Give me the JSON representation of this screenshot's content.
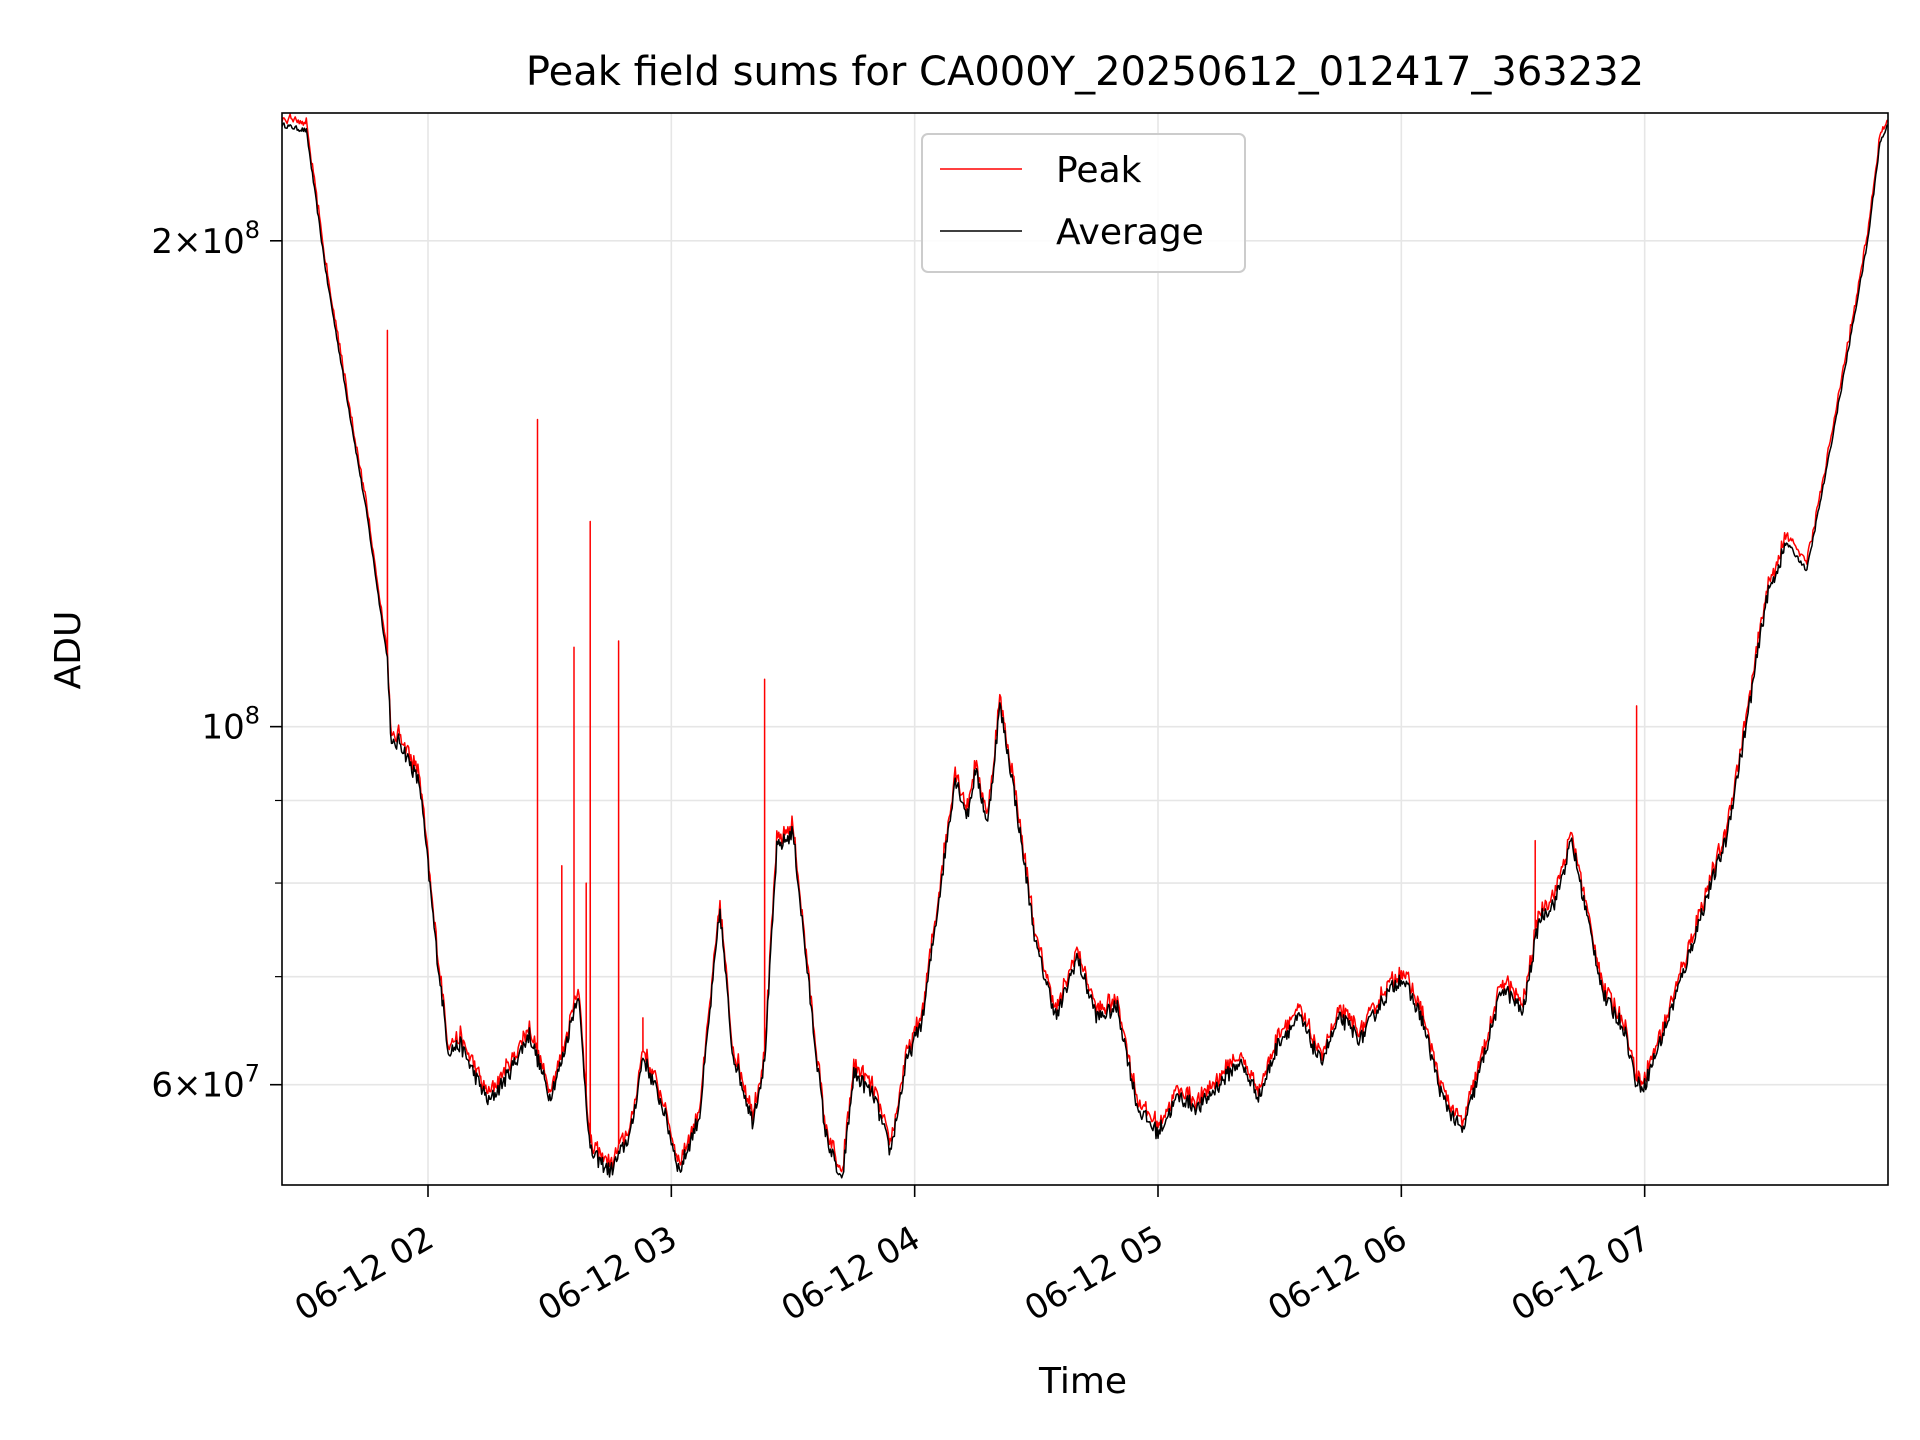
{
  "chart_data": {
    "type": "line",
    "title": "Peak field sums for CA000Y_20250612_012417_363232",
    "xlabel": "Time",
    "ylabel": "ADU",
    "yscale": "log",
    "ylim": [
      52000000,
      240000000
    ],
    "xlim": [
      "06-12 01:24",
      "06-12 08:00"
    ],
    "x_ticks": [
      "06-12 02",
      "06-12 03",
      "06-12 04",
      "06-12 05",
      "06-12 06",
      "06-12 07"
    ],
    "y_ticks": [
      {
        "value": 60000000,
        "mantissa": "6",
        "exponent": "7"
      },
      {
        "value": 100000000,
        "mantissa": "",
        "exponent": "8"
      },
      {
        "value": 200000000,
        "mantissa": "2",
        "exponent": "8"
      }
    ],
    "y_minor_grid": [
      70000000,
      80000000,
      90000000
    ],
    "grid": true,
    "legend": {
      "position": "top-center",
      "entries": [
        "Peak",
        "Average"
      ]
    },
    "series": [
      {
        "name": "Average",
        "color": "#000000",
        "x": [
          "06-12 01:24",
          "06-12 01:30",
          "06-12 01:35",
          "06-12 01:40",
          "06-12 01:45",
          "06-12 01:50",
          "06-12 01:51",
          "06-12 01:53",
          "06-12 01:58",
          "06-12 02:02",
          "06-12 02:05",
          "06-12 02:08",
          "06-12 02:12",
          "06-12 02:15",
          "06-12 02:20",
          "06-12 02:25",
          "06-12 02:30",
          "06-12 02:33",
          "06-12 02:37",
          "06-12 02:40",
          "06-12 02:45",
          "06-12 02:50",
          "06-12 02:53",
          "06-12 02:58",
          "06-12 03:02",
          "06-12 03:07",
          "06-12 03:12",
          "06-12 03:15",
          "06-12 03:20",
          "06-12 03:23",
          "06-12 03:26",
          "06-12 03:30",
          "06-12 03:35",
          "06-12 03:38",
          "06-12 03:42",
          "06-12 03:45",
          "06-12 03:50",
          "06-12 03:54",
          "06-12 03:58",
          "06-12 04:02",
          "06-12 04:05",
          "06-12 04:10",
          "06-12 04:13",
          "06-12 04:15",
          "06-12 04:18",
          "06-12 04:21",
          "06-12 04:24",
          "06-12 04:30",
          "06-12 04:35",
          "06-12 04:40",
          "06-12 04:45",
          "06-12 04:50",
          "06-12 04:55",
          "06-12 05:00",
          "06-12 05:05",
          "06-12 05:10",
          "06-12 05:15",
          "06-12 05:20",
          "06-12 05:25",
          "06-12 05:30",
          "06-12 05:35",
          "06-12 05:40",
          "06-12 05:45",
          "06-12 05:50",
          "06-12 05:55",
          "06-12 06:00",
          "06-12 06:05",
          "06-12 06:10",
          "06-12 06:15",
          "06-12 06:20",
          "06-12 06:25",
          "06-12 06:30",
          "06-12 06:34",
          "06-12 06:38",
          "06-12 06:42",
          "06-12 06:45",
          "06-12 06:50",
          "06-12 06:55",
          "06-12 06:58",
          "06-12 07:00",
          "06-12 07:05",
          "06-12 07:10",
          "06-12 07:15",
          "06-12 07:20",
          "06-12 07:25",
          "06-12 07:30",
          "06-12 07:35",
          "06-12 07:40",
          "06-12 07:45",
          "06-12 07:50",
          "06-12 07:55",
          "06-12 07:58",
          "06-12 08:00"
        ],
        "values": [
          236000000,
          234000000,
          190000000,
          160000000,
          135000000,
          110000000,
          97000000,
          98000000,
          92000000,
          73000000,
          63000000,
          63500000,
          60500000,
          58500000,
          61000000,
          64500000,
          59000000,
          62000000,
          68500000,
          54500000,
          53000000,
          56000000,
          62500000,
          58000000,
          53000000,
          57500000,
          77000000,
          63000000,
          57000000,
          62000000,
          84000000,
          86000000,
          65000000,
          56000000,
          52000000,
          61000000,
          59000000,
          54500000,
          62000000,
          66000000,
          75000000,
          93000000,
          88000000,
          94000000,
          87000000,
          103000000,
          93000000,
          73000000,
          66000000,
          72000000,
          66000000,
          67000000,
          58000000,
          56000000,
          59000000,
          58000000,
          60000000,
          62000000,
          59000000,
          64000000,
          66000000,
          62000000,
          66000000,
          64000000,
          67500000,
          70000000,
          66000000,
          59000000,
          56000000,
          62000000,
          69000000,
          66500000,
          76000000,
          78000000,
          85000000,
          78000000,
          68000000,
          65000000,
          60000000,
          60000000,
          65000000,
          71000000,
          78000000,
          85000000,
          100000000,
          120000000,
          130000000,
          125000000,
          145000000,
          170000000,
          200000000,
          230000000,
          236000000
        ]
      },
      {
        "name": "Peak",
        "color": "#ff0000",
        "spikes": [
          {
            "x": "06-12 01:50",
            "value": 176000000
          },
          {
            "x": "06-12 02:27",
            "value": 155000000
          },
          {
            "x": "06-12 02:33",
            "value": 82000000
          },
          {
            "x": "06-12 02:36",
            "value": 112000000
          },
          {
            "x": "06-12 02:39",
            "value": 80000000
          },
          {
            "x": "06-12 02:40",
            "value": 134000000
          },
          {
            "x": "06-12 02:47",
            "value": 113000000
          },
          {
            "x": "06-12 02:53",
            "value": 66000000
          },
          {
            "x": "06-12 03:23",
            "value": 107000000
          },
          {
            "x": "06-12 06:33",
            "value": 85000000
          },
          {
            "x": "06-12 06:58",
            "value": 103000000
          }
        ]
      }
    ]
  }
}
